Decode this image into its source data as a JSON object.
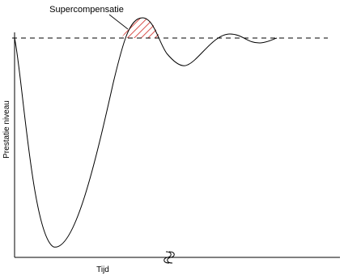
{
  "diagram": {
    "annotation": "Supercompensatie",
    "y_axis_label": "Prestatie niveau",
    "x_axis_label": "Tijd",
    "axis_break_icon": "axis-break-symbol",
    "colors": {
      "line": "#000000",
      "hatch": "#d9534f",
      "background": "#ffffff"
    }
  }
}
